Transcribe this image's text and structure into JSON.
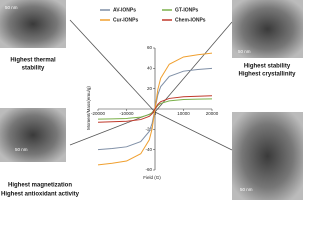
{
  "chart_data": {
    "type": "line",
    "x_label": "Field (G)",
    "y_label": "Moment/Mass(emu/g)",
    "x": [
      -20000,
      -15000,
      -10000,
      -5000,
      -2000,
      -1000,
      0,
      1000,
      2000,
      5000,
      10000,
      15000,
      20000
    ],
    "series": [
      {
        "name": "AV-IONPs",
        "color": "#7f8fa6",
        "values": [
          -40,
          -38.8,
          -37.2,
          -32,
          -22,
          -14,
          0,
          14,
          22,
          32,
          37.2,
          38.8,
          40
        ]
      },
      {
        "name": "GT-IONPs",
        "color": "#7ab04a",
        "values": [
          -10,
          -9.7,
          -9.3,
          -8,
          -5.5,
          -3.5,
          0,
          3.5,
          5.5,
          8,
          9.3,
          9.7,
          10
        ]
      },
      {
        "name": "Cur-IONPs",
        "color": "#f0a030",
        "values": [
          -55,
          -53.4,
          -51.2,
          -44,
          -30.3,
          -19.3,
          0,
          19.3,
          30.3,
          44,
          51.2,
          53.4,
          55
        ]
      },
      {
        "name": "Chem-IONPs",
        "color": "#c0392b",
        "values": [
          -13,
          -12.6,
          -12.1,
          -10.4,
          -7.2,
          -4.6,
          0,
          4.6,
          7.2,
          10.4,
          12.1,
          12.6,
          13
        ]
      }
    ],
    "xlim": [
      -20000,
      20000
    ],
    "xticks": [
      -20000,
      -10000,
      0,
      10000,
      20000
    ],
    "ylim": [
      -60,
      60
    ],
    "yticks": [
      -60,
      -40,
      -20,
      20,
      40,
      60
    ]
  },
  "panels": [
    {
      "scale_label": "50 nm",
      "captions": [
        "Highest thermal",
        "stability"
      ]
    },
    {
      "scale_label": "50 nm",
      "captions": [
        "Highest stability",
        "Highest crystallinity"
      ]
    },
    {
      "scale_label": "50 nm",
      "captions": [
        "Highest magnetization",
        "Highest antioxidant activity"
      ]
    },
    {
      "scale_label": "50 nm",
      "captions": []
    }
  ]
}
